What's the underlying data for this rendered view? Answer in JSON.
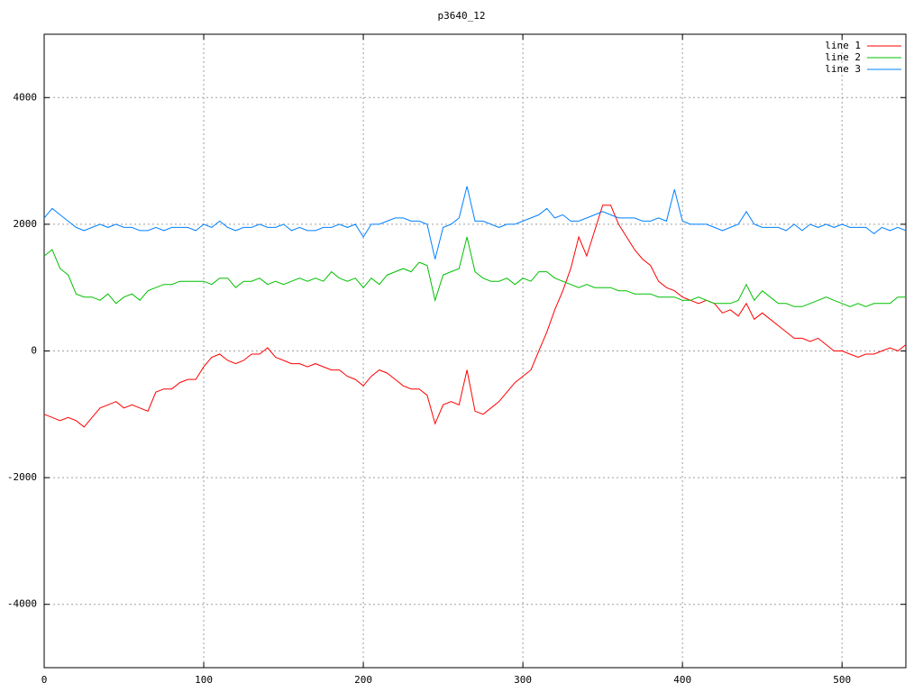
{
  "chart_data": {
    "type": "line",
    "title": "p3640_12",
    "x": [
      0,
      5,
      10,
      15,
      20,
      25,
      30,
      35,
      40,
      45,
      50,
      55,
      60,
      65,
      70,
      75,
      80,
      85,
      90,
      95,
      100,
      105,
      110,
      115,
      120,
      125,
      130,
      135,
      140,
      145,
      150,
      155,
      160,
      165,
      170,
      175,
      180,
      185,
      190,
      195,
      200,
      205,
      210,
      215,
      220,
      225,
      230,
      235,
      240,
      245,
      250,
      255,
      260,
      265,
      270,
      275,
      280,
      285,
      290,
      295,
      300,
      305,
      310,
      315,
      320,
      325,
      330,
      335,
      340,
      345,
      350,
      355,
      360,
      365,
      370,
      375,
      380,
      385,
      390,
      395,
      400,
      405,
      410,
      415,
      420,
      425,
      430,
      435,
      440,
      445,
      450,
      455,
      460,
      465,
      470,
      475,
      480,
      485,
      490,
      495,
      500,
      505,
      510,
      515,
      520,
      525,
      530,
      535,
      540
    ],
    "series": [
      {
        "name": "line 1",
        "color": "#ff0000",
        "values": [
          -1000,
          -1050,
          -1100,
          -1050,
          -1100,
          -1200,
          -1050,
          -900,
          -850,
          -800,
          -900,
          -850,
          -900,
          -950,
          -650,
          -600,
          -600,
          -500,
          -450,
          -450,
          -250,
          -100,
          -50,
          -150,
          -200,
          -150,
          -50,
          -50,
          50,
          -100,
          -150,
          -200,
          -200,
          -250,
          -200,
          -250,
          -300,
          -300,
          -400,
          -450,
          -550,
          -400,
          -300,
          -350,
          -450,
          -550,
          -600,
          -600,
          -700,
          -1150,
          -850,
          -800,
          -850,
          -300,
          -950,
          -1000,
          -900,
          -800,
          -650,
          -500,
          -400,
          -300,
          0,
          300,
          650,
          950,
          1300,
          1800,
          1500,
          1900,
          2300,
          2300,
          2000,
          1800,
          1600,
          1450,
          1350,
          1100,
          1000,
          950,
          850,
          800,
          750,
          800,
          750,
          600,
          650,
          550,
          750,
          500,
          600,
          500,
          400,
          300,
          200,
          200,
          150,
          200,
          100,
          0,
          0,
          -50,
          -100,
          -50,
          -50,
          0,
          50,
          0,
          100
        ]
      },
      {
        "name": "line 2",
        "color": "#00c000",
        "values": [
          1500,
          1600,
          1300,
          1200,
          900,
          850,
          850,
          800,
          900,
          750,
          850,
          900,
          800,
          950,
          1000,
          1050,
          1050,
          1100,
          1100,
          1100,
          1100,
          1050,
          1150,
          1150,
          1000,
          1100,
          1100,
          1150,
          1050,
          1100,
          1050,
          1100,
          1150,
          1100,
          1150,
          1100,
          1250,
          1150,
          1100,
          1150,
          1000,
          1150,
          1050,
          1200,
          1250,
          1300,
          1250,
          1400,
          1350,
          800,
          1200,
          1250,
          1300,
          1800,
          1250,
          1150,
          1100,
          1100,
          1150,
          1050,
          1150,
          1100,
          1250,
          1250,
          1150,
          1100,
          1050,
          1000,
          1050,
          1000,
          1000,
          1000,
          950,
          950,
          900,
          900,
          900,
          850,
          850,
          850,
          800,
          800,
          850,
          800,
          750,
          750,
          750,
          800,
          1050,
          800,
          950,
          850,
          750,
          750,
          700,
          700,
          750,
          800,
          850,
          800,
          750,
          700,
          750,
          700,
          750,
          750,
          750,
          850,
          850
        ]
      },
      {
        "name": "line 3",
        "color": "#0080ff",
        "values": [
          2100,
          2250,
          2150,
          2050,
          1950,
          1900,
          1950,
          2000,
          1950,
          2000,
          1950,
          1950,
          1900,
          1900,
          1950,
          1900,
          1950,
          1950,
          1950,
          1900,
          2000,
          1950,
          2050,
          1950,
          1900,
          1950,
          1950,
          2000,
          1950,
          1950,
          2000,
          1900,
          1950,
          1900,
          1900,
          1950,
          1950,
          2000,
          1950,
          2000,
          1800,
          2000,
          2000,
          2050,
          2100,
          2100,
          2050,
          2050,
          2000,
          1450,
          1950,
          2000,
          2100,
          2600,
          2050,
          2050,
          2000,
          1950,
          2000,
          2000,
          2050,
          2100,
          2150,
          2250,
          2100,
          2150,
          2050,
          2050,
          2100,
          2150,
          2200,
          2150,
          2100,
          2100,
          2100,
          2050,
          2050,
          2100,
          2050,
          2550,
          2050,
          2000,
          2000,
          2000,
          1950,
          1900,
          1950,
          2000,
          2200,
          2000,
          1950,
          1950,
          1950,
          1900,
          2000,
          1900,
          2000,
          1950,
          2000,
          1950,
          2000,
          1950,
          1950,
          1950,
          1850,
          1950,
          1900,
          1950,
          1900
        ]
      }
    ],
    "xlim": [
      0,
      540
    ],
    "ylim": [
      -5000,
      5000
    ],
    "xticks": [
      0,
      100,
      200,
      300,
      400,
      500
    ],
    "yticks": [
      -4000,
      -2000,
      0,
      2000,
      4000
    ],
    "grid": true,
    "legend": "top-right"
  }
}
